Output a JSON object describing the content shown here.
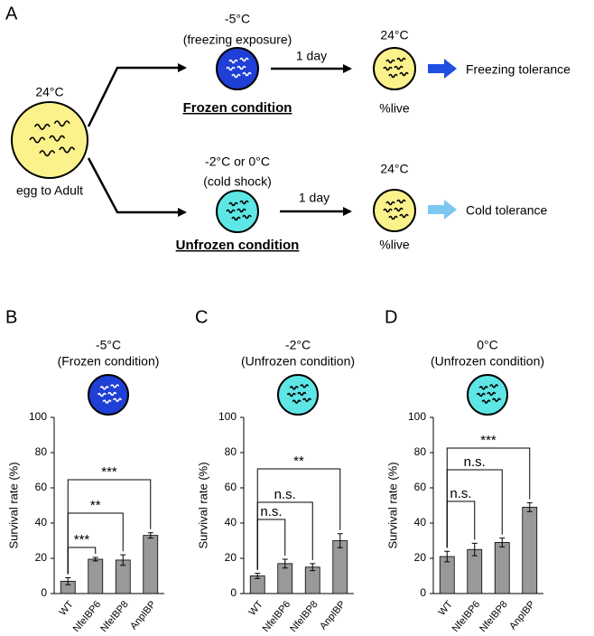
{
  "diagram": {
    "panel": "A",
    "start": {
      "temp": "24°C",
      "label": "egg to Adult"
    },
    "frozen": {
      "temp": "-5°C",
      "note": "(freezing exposure)",
      "label": "Frozen condition",
      "duration": "1 day",
      "after_temp": "24°C",
      "after_label": "%live",
      "outcome": "Freezing tolerance"
    },
    "unfrozen": {
      "temp": "-2°C or 0°C",
      "note": "(cold shock)",
      "label": "Unfrozen condition",
      "duration": "1 day",
      "after_temp": "24°C",
      "after_label": "%live",
      "outcome": "Cold tolerance"
    }
  },
  "chart_data": [
    {
      "type": "bar",
      "panel": "B",
      "title": "-5°C",
      "subtitle": "(Frozen condition)",
      "y_label": "Survival rate (%)",
      "categories": [
        "WT",
        "NfeIBP6",
        "NfeIBP8",
        "AnpIBP"
      ],
      "values": [
        7,
        19.5,
        19,
        33
      ],
      "errors": [
        2,
        1,
        3,
        1.5
      ],
      "color": "#999999",
      "ylim": [
        0,
        100
      ],
      "yticks": [
        0,
        20,
        40,
        60,
        80,
        100
      ],
      "annotations": [
        "***",
        "**",
        "***"
      ]
    },
    {
      "type": "bar",
      "panel": "C",
      "title": "-2°C",
      "subtitle": "(Unfrozen condition)",
      "y_label": "Survival rate (%)",
      "categories": [
        "WT",
        "NfeIBP6",
        "NfeIBP8",
        "AnpIBP"
      ],
      "values": [
        10,
        17,
        15,
        30
      ],
      "errors": [
        1.5,
        2.5,
        2,
        4
      ],
      "color": "#999999",
      "ylim": [
        0,
        100
      ],
      "yticks": [
        0,
        20,
        40,
        60,
        80,
        100
      ],
      "annotations": [
        "n.s.",
        "n.s.",
        "**"
      ]
    },
    {
      "type": "bar",
      "panel": "D",
      "title": "0°C",
      "subtitle": "(Unfrozen condition)",
      "y_label": "Survival rate (%)",
      "categories": [
        "WT",
        "NfeIBP6",
        "NfeIBP8",
        "AnpIBP"
      ],
      "values": [
        21,
        25,
        29,
        49
      ],
      "errors": [
        3,
        3.5,
        2.5,
        2.5
      ],
      "color": "#999999",
      "ylim": [
        0,
        100
      ],
      "yticks": [
        0,
        20,
        40,
        60,
        80,
        100
      ],
      "annotations": [
        "n.s.",
        "n.s.",
        "***"
      ]
    }
  ]
}
